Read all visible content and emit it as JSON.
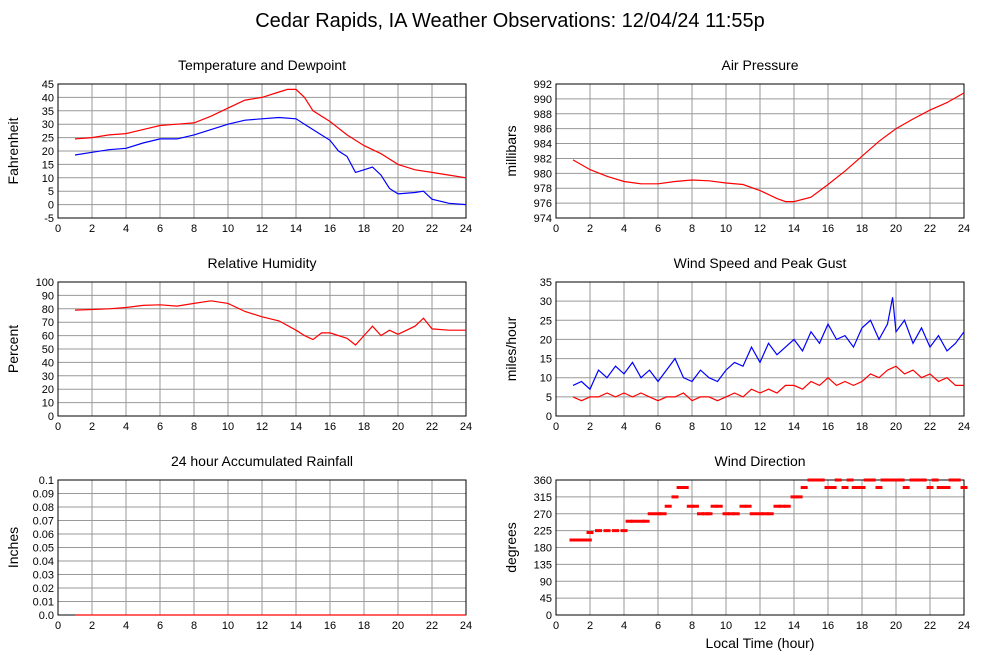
{
  "title": "Cedar Rapids, IA Weather Observations: 12/04/24 11:55p",
  "colors": {
    "red": "#ff0000",
    "blue": "#0000ff",
    "grid": "#999999",
    "axis": "#000000"
  },
  "chart_data": [
    {
      "type": "line",
      "title": "Temperature and Dewpoint",
      "ylabel": "Fahrenheit",
      "xlabel": "",
      "xlim": [
        0,
        24
      ],
      "ylim": [
        -5,
        45
      ],
      "yticks": [
        -5,
        0,
        5,
        10,
        15,
        20,
        25,
        30,
        35,
        40,
        45
      ],
      "xticks": [
        0,
        2,
        4,
        6,
        8,
        10,
        12,
        14,
        16,
        18,
        20,
        22,
        24
      ],
      "grid": true,
      "series": [
        {
          "color": "red",
          "x": [
            1,
            2,
            3,
            4,
            5,
            6,
            7,
            8,
            9,
            10,
            11,
            12,
            13,
            13.5,
            14,
            14.5,
            15,
            16,
            17,
            18,
            19,
            20,
            21,
            22,
            23,
            24
          ],
          "y": [
            24.5,
            25,
            26,
            26.5,
            28,
            29.5,
            30,
            30.5,
            33,
            36,
            39,
            40,
            42,
            43,
            43,
            40,
            35,
            31,
            26,
            22,
            19,
            15,
            13,
            12,
            11,
            10
          ]
        },
        {
          "color": "blue",
          "x": [
            1,
            2,
            3,
            4,
            5,
            6,
            7,
            8,
            9,
            10,
            11,
            12,
            13,
            14,
            14.5,
            15,
            16,
            16.5,
            17,
            17.5,
            18,
            18.5,
            19,
            19.5,
            20,
            21,
            21.5,
            22,
            23,
            24
          ],
          "y": [
            18.5,
            19.5,
            20.5,
            21,
            23,
            24.5,
            24.5,
            26,
            28,
            30,
            31.5,
            32,
            32.5,
            32,
            30,
            28,
            24,
            20,
            18,
            12,
            13,
            14,
            11,
            6,
            4,
            4.5,
            5,
            2,
            0.5,
            0
          ]
        }
      ]
    },
    {
      "type": "line",
      "title": "Air Pressure",
      "ylabel": "millibars",
      "xlabel": "",
      "xlim": [
        0,
        24
      ],
      "ylim": [
        974,
        992
      ],
      "yticks": [
        974,
        976,
        978,
        980,
        982,
        984,
        986,
        988,
        990,
        992
      ],
      "xticks": [
        0,
        2,
        4,
        6,
        8,
        10,
        12,
        14,
        16,
        18,
        20,
        22,
        24
      ],
      "grid": true,
      "series": [
        {
          "color": "red",
          "x": [
            1,
            2,
            3,
            4,
            5,
            6,
            7,
            8,
            9,
            10,
            11,
            12,
            13,
            13.5,
            14,
            15,
            16,
            17,
            18,
            19,
            20,
            21,
            22,
            23,
            24
          ],
          "y": [
            981.8,
            980.5,
            979.6,
            978.9,
            978.6,
            978.6,
            978.9,
            979.1,
            979.0,
            978.7,
            978.5,
            977.7,
            976.6,
            976.2,
            976.2,
            976.8,
            978.5,
            980.3,
            982.3,
            984.3,
            986.0,
            987.3,
            988.5,
            989.5,
            990.8
          ]
        }
      ]
    },
    {
      "type": "line",
      "title": "Relative Humidity",
      "ylabel": "Percent",
      "xlabel": "",
      "xlim": [
        0,
        24
      ],
      "ylim": [
        0,
        100
      ],
      "yticks": [
        0,
        10,
        20,
        30,
        40,
        50,
        60,
        70,
        80,
        90,
        100
      ],
      "xticks": [
        0,
        2,
        4,
        6,
        8,
        10,
        12,
        14,
        16,
        18,
        20,
        22,
        24
      ],
      "grid": true,
      "series": [
        {
          "color": "red",
          "x": [
            1,
            2,
            3,
            4,
            5,
            6,
            7,
            8,
            9,
            10,
            11,
            12,
            13,
            14,
            14.5,
            15,
            15.5,
            16,
            17,
            17.5,
            18,
            18.5,
            19,
            19.5,
            20,
            21,
            21.5,
            22,
            23,
            24
          ],
          "y": [
            79,
            79.5,
            80,
            81,
            82.5,
            83,
            82,
            84,
            86,
            84,
            78,
            74,
            71,
            64,
            60,
            57,
            62,
            62,
            58,
            53,
            60,
            67,
            60,
            64,
            61,
            67,
            73,
            65,
            64,
            64
          ]
        }
      ]
    },
    {
      "type": "line",
      "title": "Wind Speed and Peak Gust",
      "ylabel": "miles/hour",
      "xlabel": "",
      "xlim": [
        0,
        24
      ],
      "ylim": [
        0,
        35
      ],
      "yticks": [
        0,
        5,
        10,
        15,
        20,
        25,
        30,
        35
      ],
      "xticks": [
        0,
        2,
        4,
        6,
        8,
        10,
        12,
        14,
        16,
        18,
        20,
        22,
        24
      ],
      "grid": true,
      "series": [
        {
          "color": "blue",
          "x": [
            1,
            1.5,
            2,
            2.5,
            3,
            3.5,
            4,
            4.5,
            5,
            5.5,
            6,
            6.5,
            7,
            7.5,
            8,
            8.5,
            9,
            9.5,
            10,
            10.5,
            11,
            11.5,
            12,
            12.5,
            13,
            13.5,
            14,
            14.5,
            15,
            15.5,
            16,
            16.5,
            17,
            17.5,
            18,
            18.5,
            19,
            19.5,
            19.8,
            20,
            20.5,
            21,
            21.5,
            22,
            22.5,
            23,
            23.5,
            24
          ],
          "y": [
            8,
            9,
            7,
            12,
            10,
            13,
            11,
            14,
            10,
            12,
            9,
            12,
            15,
            10,
            9,
            12,
            10,
            9,
            12,
            14,
            13,
            18,
            14,
            19,
            16,
            18,
            20,
            17,
            22,
            19,
            24,
            20,
            21,
            18,
            23,
            25,
            20,
            24,
            31,
            22,
            25,
            19,
            23,
            18,
            21,
            17,
            19,
            22
          ]
        },
        {
          "color": "red",
          "x": [
            1,
            1.5,
            2,
            2.5,
            3,
            3.5,
            4,
            4.5,
            5,
            5.5,
            6,
            6.5,
            7,
            7.5,
            8,
            8.5,
            9,
            9.5,
            10,
            10.5,
            11,
            11.5,
            12,
            12.5,
            13,
            13.5,
            14,
            14.5,
            15,
            15.5,
            16,
            16.5,
            17,
            17.5,
            18,
            18.5,
            19,
            19.5,
            20,
            20.5,
            21,
            21.5,
            22,
            22.5,
            23,
            23.5,
            24
          ],
          "y": [
            5,
            4,
            5,
            5,
            6,
            5,
            6,
            5,
            6,
            5,
            4,
            5,
            5,
            6,
            4,
            5,
            5,
            4,
            5,
            6,
            5,
            7,
            6,
            7,
            6,
            8,
            8,
            7,
            9,
            8,
            10,
            8,
            9,
            8,
            9,
            11,
            10,
            12,
            13,
            11,
            12,
            10,
            11,
            9,
            10,
            8,
            8
          ]
        }
      ]
    },
    {
      "type": "line",
      "title": "24 hour Accumulated Rainfall",
      "ylabel": "Inches",
      "xlabel": "",
      "xlim": [
        0,
        24
      ],
      "ylim": [
        0,
        0.1
      ],
      "yticks": [
        "0.0",
        "0.01",
        "0.02",
        "0.03",
        "0.04",
        "0.05",
        "0.06",
        "0.07",
        "0.08",
        "0.09",
        "0.1"
      ],
      "xticks": [
        0,
        2,
        4,
        6,
        8,
        10,
        12,
        14,
        16,
        18,
        20,
        22,
        24
      ],
      "grid": true,
      "series": [
        {
          "color": "red",
          "x": [
            1,
            24
          ],
          "y": [
            0,
            0
          ]
        }
      ]
    },
    {
      "type": "scatter",
      "title": "Wind Direction",
      "ylabel": "degrees",
      "xlabel": "Local Time (hour)",
      "xlim": [
        0,
        24
      ],
      "ylim": [
        0,
        360
      ],
      "yticks": [
        0,
        45,
        90,
        135,
        180,
        225,
        270,
        315,
        360
      ],
      "xticks": [
        0,
        2,
        4,
        6,
        8,
        10,
        12,
        14,
        16,
        18,
        20,
        22,
        24
      ],
      "grid": true,
      "series": [
        {
          "color": "red",
          "x": [
            1,
            1.3,
            1.6,
            1.9,
            2,
            2.5,
            3,
            3.5,
            4,
            4.3,
            4.6,
            5,
            5.3,
            5.6,
            6,
            6.3,
            6.6,
            7,
            7.3,
            7.6,
            7.9,
            8.2,
            8.5,
            8.8,
            9,
            9.3,
            9.6,
            10,
            10.3,
            10.6,
            11,
            11.3,
            11.6,
            12,
            12.3,
            12.6,
            13,
            13.3,
            13.6,
            14,
            14.3,
            14.6,
            15,
            15.3,
            15.6,
            16,
            16.3,
            16.6,
            17,
            17.3,
            17.6,
            18,
            18.3,
            18.6,
            19,
            19.3,
            19.6,
            20,
            20.3,
            20.6,
            21,
            21.3,
            21.6,
            22,
            22.3,
            22.6,
            23,
            23.3,
            23.6,
            24
          ],
          "y": [
            200,
            200,
            200,
            200,
            220,
            225,
            225,
            225,
            225,
            250,
            250,
            250,
            250,
            270,
            270,
            270,
            290,
            315,
            340,
            340,
            290,
            290,
            270,
            270,
            270,
            290,
            290,
            270,
            270,
            270,
            290,
            290,
            270,
            270,
            270,
            270,
            290,
            290,
            290,
            315,
            315,
            340,
            360,
            360,
            360,
            340,
            340,
            360,
            340,
            360,
            340,
            340,
            360,
            360,
            340,
            360,
            360,
            360,
            360,
            340,
            360,
            360,
            360,
            340,
            360,
            340,
            340,
            360,
            360,
            340
          ]
        }
      ]
    }
  ]
}
